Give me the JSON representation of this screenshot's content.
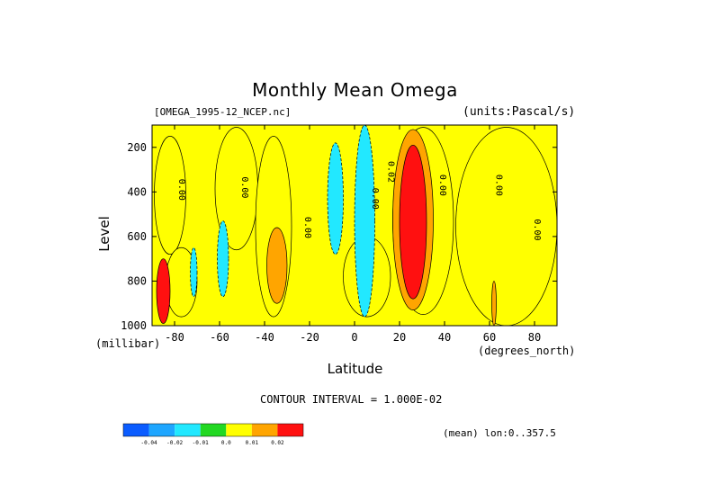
{
  "chart_data": {
    "type": "heatmap",
    "title": "Monthly Mean Omega",
    "file_label": "[OMEGA_1995-12_NCEP.nc]",
    "units_label": "(units:Pascal/s)",
    "xlabel": "Latitude",
    "xunit": "(degrees_north)",
    "ylabel": "Level",
    "yunit": "(millibar)",
    "xlim": [
      -90,
      90
    ],
    "ylim": [
      1000,
      100
    ],
    "x_ticks": [
      -80,
      -60,
      -40,
      -20,
      0,
      20,
      40,
      60,
      80
    ],
    "y_ticks": [
      200,
      400,
      600,
      800,
      1000
    ],
    "contour_interval_text": "CONTOUR INTERVAL = 1.000E-02",
    "mean_label": "(mean) lon:0..357.5",
    "colorbar": {
      "colors": [
        "#0b5cff",
        "#1ea6ff",
        "#22e8ff",
        "#22d822",
        "#ffff00",
        "#ffa500",
        "#ff1010"
      ],
      "labels": [
        "-0.04",
        "-0.02",
        "-0.01",
        "0.0",
        "0.01",
        "0.02"
      ]
    },
    "contour_labels": [
      {
        "lat": -78,
        "lev": 390,
        "text": "0.00"
      },
      {
        "lat": -50,
        "lev": 380,
        "text": "0.00"
      },
      {
        "lat": -22,
        "lev": 560,
        "text": "0.00"
      },
      {
        "lat": 8,
        "lev": 430,
        "text": "0.00"
      },
      {
        "lat": 15,
        "lev": 310,
        "text": "0.02"
      },
      {
        "lat": 38,
        "lev": 370,
        "text": "0.00"
      },
      {
        "lat": 63,
        "lev": 370,
        "text": "0.00"
      },
      {
        "lat": 80,
        "lev": 570,
        "text": "0.00"
      }
    ],
    "regions": [
      {
        "lat": [
          -90,
          90
        ],
        "lev": [
          100,
          1000
        ],
        "value": 0.0
      },
      {
        "lat": [
          -89,
          -75
        ],
        "lev": [
          150,
          680
        ],
        "value": 0.005
      },
      {
        "lat": [
          -62,
          -43
        ],
        "lev": [
          110,
          660
        ],
        "value": 0.005
      },
      {
        "lat": [
          -44,
          -28
        ],
        "lev": [
          150,
          960
        ],
        "value": 0.005
      },
      {
        "lat": [
          -84,
          -70
        ],
        "lev": [
          650,
          960
        ],
        "value": 0.005
      },
      {
        "lat": [
          -5,
          16
        ],
        "lev": [
          600,
          960
        ],
        "value": 0.005
      },
      {
        "lat": [
          17,
          44
        ],
        "lev": [
          110,
          950
        ],
        "value": 0.005
      },
      {
        "lat": [
          45,
          90
        ],
        "lev": [
          110,
          1000
        ],
        "value": 0.005
      },
      {
        "lat": [
          -88,
          -82
        ],
        "lev": [
          700,
          990
        ],
        "value": 0.025
      },
      {
        "lat": [
          -73,
          -70
        ],
        "lev": [
          650,
          870
        ],
        "value": -0.015
      },
      {
        "lat": [
          -61,
          -56
        ],
        "lev": [
          530,
          870
        ],
        "value": -0.015
      },
      {
        "lat": [
          -12,
          -5
        ],
        "lev": [
          180,
          680
        ],
        "value": -0.015
      },
      {
        "lat": [
          0,
          9
        ],
        "lev": [
          100,
          960
        ],
        "value": -0.015
      },
      {
        "lat": [
          -39,
          -30
        ],
        "lev": [
          560,
          900
        ],
        "value": 0.015
      },
      {
        "lat": [
          17,
          35
        ],
        "lev": [
          120,
          930
        ],
        "value": 0.015
      },
      {
        "lat": [
          20,
          32
        ],
        "lev": [
          190,
          880
        ],
        "value": 0.025
      },
      {
        "lat": [
          61,
          63
        ],
        "lev": [
          800,
          1000
        ],
        "value": 0.015
      }
    ]
  }
}
